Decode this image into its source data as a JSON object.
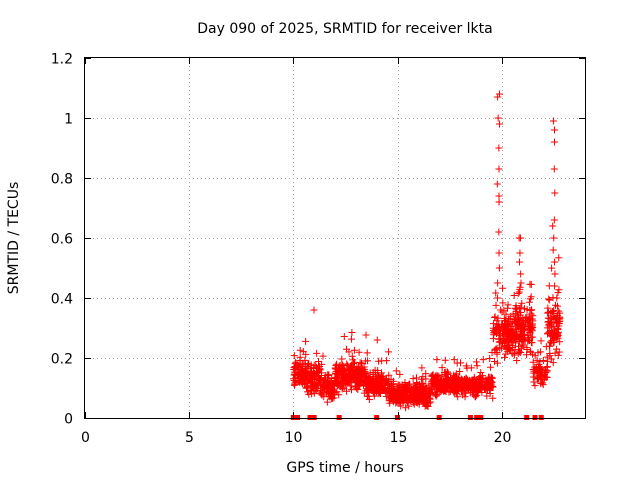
{
  "chart_data": {
    "type": "scatter",
    "title": "Day 090 of 2025, SRMTID for receiver lkta",
    "xlabel": "GPS time / hours",
    "ylabel": "SRMTID / TECUs",
    "xlim": [
      0,
      24
    ],
    "ylim": [
      0,
      1.2
    ],
    "xticks": [
      0,
      5,
      10,
      15,
      20
    ],
    "xtick_labels": [
      "0",
      "5",
      "10",
      "15",
      "20"
    ],
    "yticks": [
      0,
      0.2,
      0.4,
      0.6,
      0.8,
      1,
      1.2
    ],
    "ytick_labels": [
      "0",
      "0.2",
      "0.4",
      "0.6",
      "0.8",
      "1",
      "1.2"
    ],
    "grid": true,
    "marker": "+",
    "color": "#ff0000",
    "segments": [
      {
        "from": 10.0,
        "to": 10.6,
        "base": 0.15,
        "spread": 0.06,
        "count": 90
      },
      {
        "from": 10.6,
        "to": 11.3,
        "base": 0.13,
        "spread": 0.07,
        "count": 100
      },
      {
        "from": 11.3,
        "to": 12.0,
        "base": 0.1,
        "spread": 0.06,
        "count": 90
      },
      {
        "from": 12.0,
        "to": 13.5,
        "base": 0.14,
        "spread": 0.07,
        "count": 220
      },
      {
        "from": 13.5,
        "to": 14.6,
        "base": 0.11,
        "spread": 0.06,
        "count": 160
      },
      {
        "from": 14.6,
        "to": 16.6,
        "base": 0.08,
        "spread": 0.05,
        "count": 300
      },
      {
        "from": 16.6,
        "to": 18.5,
        "base": 0.11,
        "spread": 0.05,
        "count": 260
      },
      {
        "from": 18.5,
        "to": 19.6,
        "base": 0.11,
        "spread": 0.05,
        "count": 140
      },
      {
        "from": 19.6,
        "to": 20.6,
        "base": 0.28,
        "spread": 0.12,
        "count": 150
      },
      {
        "from": 20.6,
        "to": 21.5,
        "base": 0.3,
        "spread": 0.12,
        "count": 150
      },
      {
        "from": 21.5,
        "to": 22.2,
        "base": 0.15,
        "spread": 0.06,
        "count": 70
      },
      {
        "from": 22.2,
        "to": 22.8,
        "base": 0.3,
        "spread": 0.15,
        "count": 100
      }
    ],
    "spikes": [
      {
        "x": 19.85,
        "values": [
          1.08,
          1.07,
          1.0,
          0.98,
          0.9,
          0.83,
          0.78,
          0.74,
          0.72,
          0.62,
          0.55,
          0.5,
          0.45,
          0.4
        ]
      },
      {
        "x": 20.9,
        "values": [
          0.6,
          0.6,
          0.55,
          0.52,
          0.48,
          0.45,
          0.42
        ]
      },
      {
        "x": 22.5,
        "values": [
          0.99,
          0.96,
          0.92,
          0.83,
          0.75,
          0.66,
          0.64,
          0.6,
          0.56,
          0.52,
          0.48,
          0.44
        ]
      },
      {
        "x": 11.0,
        "values": [
          0.36
        ]
      },
      {
        "x": 14.0,
        "values": [
          0.26
        ]
      }
    ],
    "zero_markers": [
      10.0,
      10.2,
      10.8,
      11.0,
      12.2,
      14.0,
      15.0,
      17.0,
      18.5,
      18.8,
      19.0,
      21.2,
      21.6,
      21.9
    ]
  }
}
